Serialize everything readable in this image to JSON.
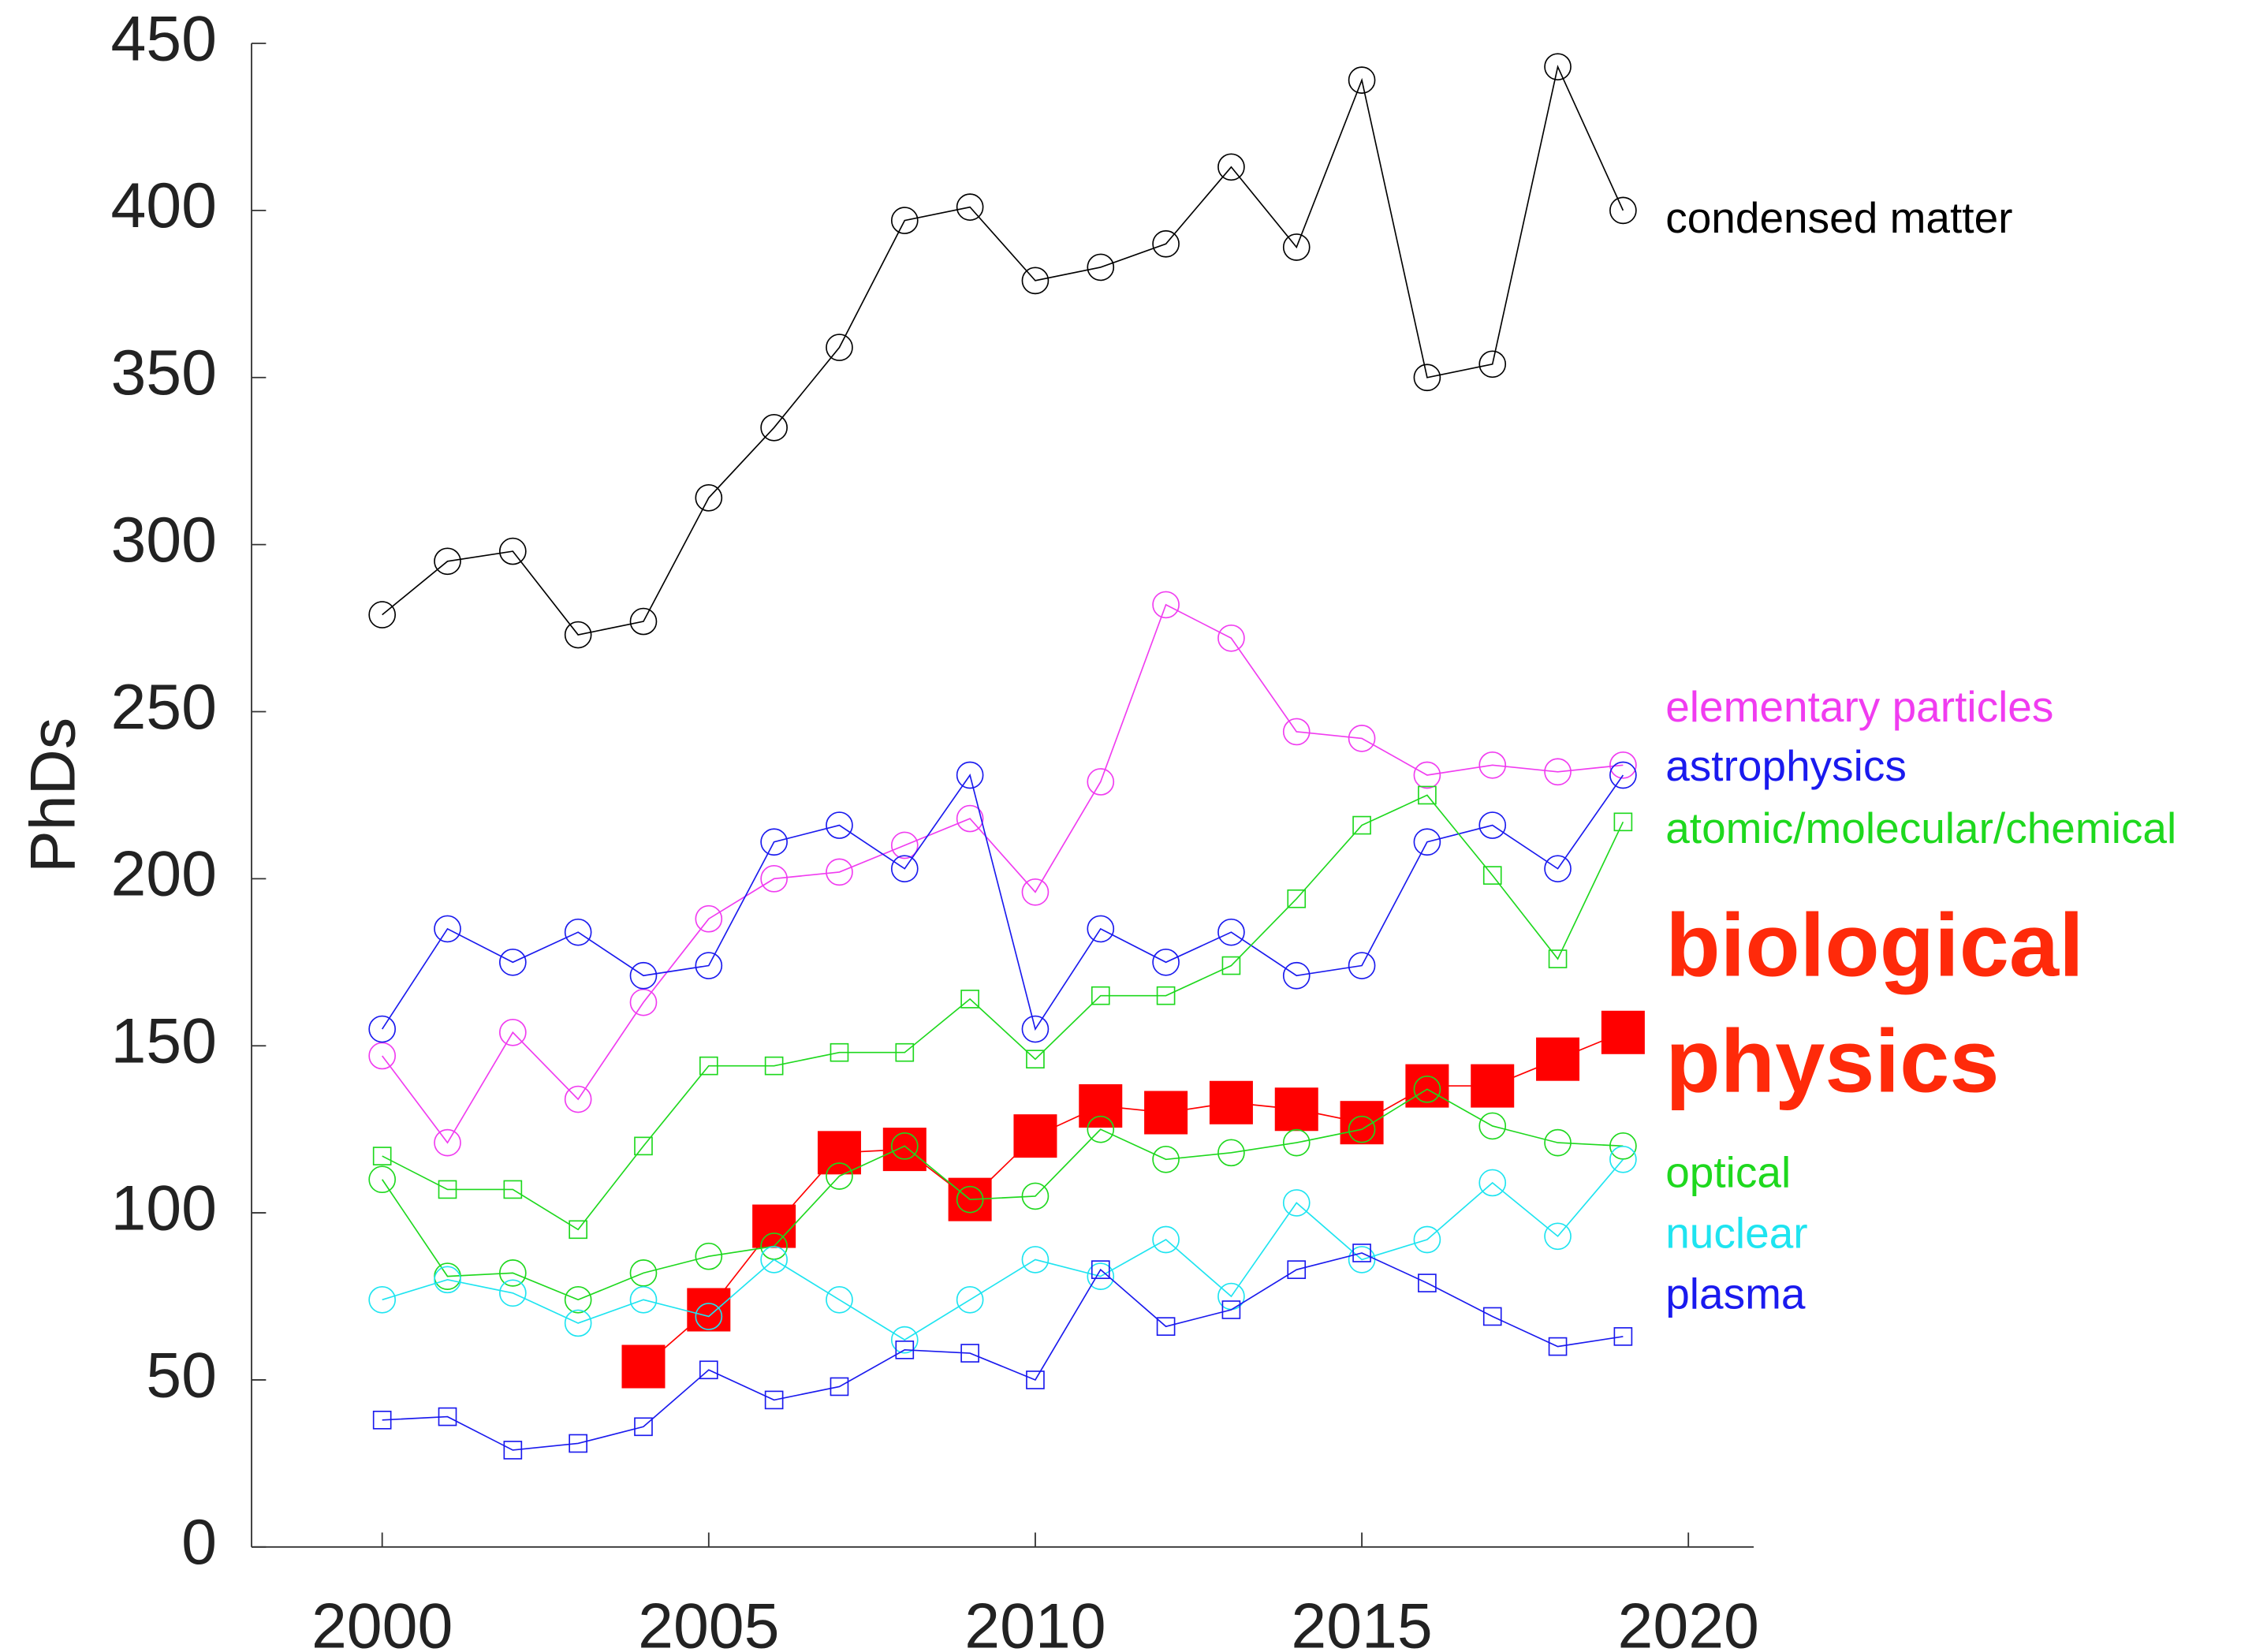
{
  "chart_data": {
    "type": "line",
    "ylabel": "PhDs",
    "x": [
      2000,
      2001,
      2002,
      2003,
      2004,
      2005,
      2006,
      2007,
      2008,
      2009,
      2010,
      2011,
      2012,
      2013,
      2014,
      2015,
      2016,
      2017,
      2018,
      2019
    ],
    "xlim": [
      1998,
      2021
    ],
    "xticks": [
      2000,
      2005,
      2010,
      2015,
      2020
    ],
    "ylim": [
      0,
      450
    ],
    "yticks": [
      0,
      50,
      100,
      150,
      200,
      250,
      300,
      350,
      400,
      450
    ],
    "series": [
      {
        "name": "condensed matter",
        "color": "#000000",
        "marker": "circle",
        "values": [
          279,
          295,
          298,
          273,
          277,
          314,
          335,
          359,
          397,
          401,
          379,
          383,
          390,
          413,
          389,
          439,
          350,
          354,
          443,
          400
        ]
      },
      {
        "name": "elementary particles",
        "color": "#f03cf0",
        "marker": "circle",
        "values": [
          147,
          121,
          154,
          134,
          163,
          188,
          200,
          202,
          210,
          218,
          196,
          229,
          282,
          272,
          244,
          242,
          231,
          234,
          232,
          234
        ]
      },
      {
        "name": "astrophysics",
        "color": "#1a1aee",
        "marker": "circle",
        "values": [
          155,
          185,
          175,
          184,
          171,
          174,
          211,
          216,
          203,
          231,
          155,
          185,
          175,
          184,
          171,
          174,
          211,
          216,
          203,
          231
        ]
      },
      {
        "name": "atomic/molecular/chemical",
        "color": "#1ed81e",
        "marker": "square",
        "values": [
          117,
          107,
          107,
          95,
          120,
          144,
          144,
          148,
          148,
          164,
          146,
          165,
          165,
          174,
          194,
          216,
          225,
          201,
          176,
          217
        ]
      },
      {
        "name": "biological physics",
        "color": "#ff0000",
        "marker": "filled-square",
        "values": [
          null,
          null,
          null,
          null,
          54,
          71,
          96,
          118,
          119,
          104,
          123,
          132,
          130,
          133,
          131,
          127,
          138,
          138,
          146,
          154
        ]
      },
      {
        "name": "optical",
        "color": "#1ed81e",
        "marker": "circle",
        "values": [
          110,
          81,
          82,
          74,
          82,
          87,
          90,
          111,
          120,
          104,
          105,
          125,
          116,
          118,
          121,
          125,
          137,
          126,
          121,
          120
        ]
      },
      {
        "name": "nuclear",
        "color": "#1ee4f0",
        "marker": "circle",
        "values": [
          74,
          80,
          76,
          67,
          74,
          69,
          86,
          74,
          62,
          74,
          86,
          81,
          92,
          75,
          103,
          86,
          92,
          109,
          93,
          116
        ]
      },
      {
        "name": "plasma",
        "color": "#1a1aee",
        "marker": "square",
        "values": [
          38,
          39,
          29,
          31,
          36,
          53,
          44,
          48,
          59,
          58,
          50,
          83,
          66,
          71,
          83,
          88,
          79,
          69,
          60,
          63
        ]
      }
    ]
  }
}
